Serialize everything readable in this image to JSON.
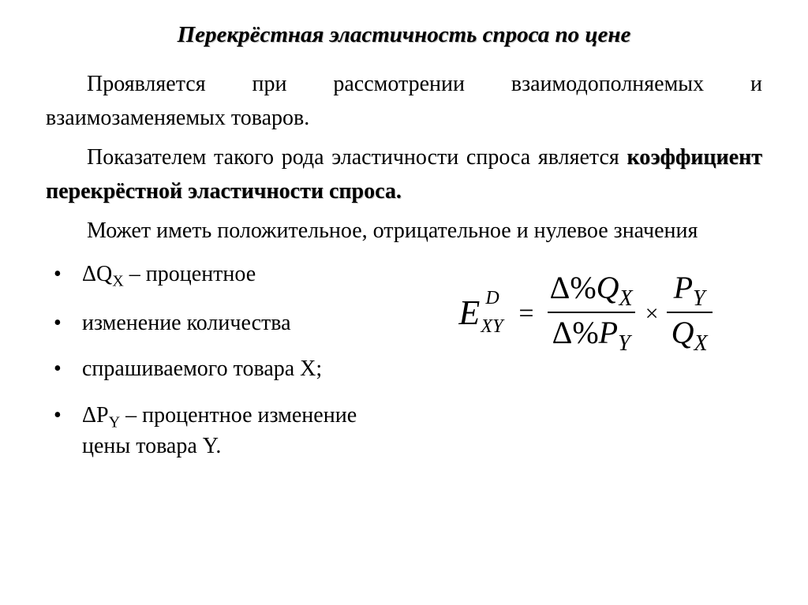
{
  "title": "Перекрёстная эластичность спроса по цене",
  "p1": "Проявляется при рассмотрении взаимодополняемых и взаимозаменяемых товаров.",
  "p2a": "Показателем такого рода эластичности спроса является ",
  "p2b": "коэффициент перекрёстной эластичности спроса.",
  "p3": "Может иметь положительное, отрицательное и нулевое значения",
  "bullets": {
    "b1a": " ΔQ",
    "b1sub": "X",
    "b1b": "  – процентное",
    "b2": "изменение количества",
    "b3": "спрашиваемого товара X;",
    "b4a": " ΔP",
    "b4sub": "Y",
    "b4b": "  – процентное изменение цены товара Y."
  },
  "formula": {
    "E": "E",
    "supD": "D",
    "subXY": "XY",
    "eq": "=",
    "delta": "Δ",
    "pct": "%",
    "Q": "Q",
    "P": "P",
    "X": "X",
    "Y": "Y",
    "times": "×"
  }
}
